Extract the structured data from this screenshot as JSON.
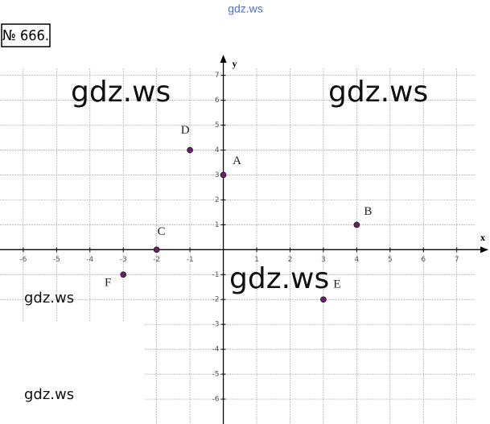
{
  "header": "gdz.ws",
  "problem_number": "№ 666.",
  "watermarks": [
    "gdz.ws",
    "gdz.ws",
    "gdz.ws",
    "gdz.ws",
    "gdz.ws"
  ],
  "chart_data": {
    "type": "scatter",
    "xlabel": "x",
    "ylabel": "y",
    "xlim": [
      -6.6,
      7.9
    ],
    "ylim": [
      -7,
      7.7
    ],
    "xticks": [
      -6,
      -5,
      -4,
      -3,
      -2,
      -1,
      1,
      2,
      3,
      4,
      5,
      6,
      7
    ],
    "yticks": [
      -6,
      -5,
      -4,
      -3,
      -2,
      -1,
      1,
      2,
      3,
      4,
      5,
      6,
      7
    ],
    "grid": true,
    "series": [
      {
        "color": "#6a1f6a",
        "labels": [
          "A",
          "B",
          "C",
          "D",
          "E",
          "F"
        ],
        "x": [
          0,
          4,
          -2,
          -1,
          3,
          -3
        ],
        "values": [
          3,
          1,
          0,
          4,
          -2,
          -1
        ]
      }
    ]
  }
}
